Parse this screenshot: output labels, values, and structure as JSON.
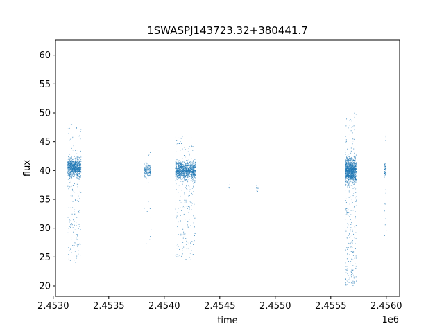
{
  "chart_data": {
    "type": "scatter",
    "title": "1SWASPJ143723.32+380441.7",
    "xlabel": "time",
    "ylabel": "flux",
    "x_offset_label": "1e6",
    "xlim": [
      2.45302,
      2.45612
    ],
    "ylim": [
      18.2,
      62.6
    ],
    "x_ticks": [
      2.453,
      2.4535,
      2.454,
      2.4545,
      2.455,
      2.4555,
      2.456
    ],
    "x_tick_labels": [
      "2.4530",
      "2.4535",
      "2.4540",
      "2.4545",
      "2.4550",
      "2.4555",
      "2.4560"
    ],
    "y_ticks": [
      20,
      25,
      30,
      35,
      40,
      45,
      50,
      55,
      60
    ],
    "y_tick_labels": [
      "20",
      "25",
      "30",
      "35",
      "40",
      "45",
      "50",
      "55",
      "60"
    ],
    "grid": false,
    "marker_color": "#1f77b4",
    "clusters": [
      {
        "x_start": 2.45313,
        "x_end": 2.45325,
        "y_median": 40.5,
        "y_min": 24.0,
        "y_max": 48.0,
        "points": 900
      },
      {
        "x_start": 2.45382,
        "x_end": 2.45388,
        "y_median": 40.0,
        "y_min": 26.5,
        "y_max": 44.0,
        "points": 150
      },
      {
        "x_start": 2.4541,
        "x_end": 2.45428,
        "y_median": 40.0,
        "y_min": 24.5,
        "y_max": 46.0,
        "points": 1100
      },
      {
        "x_start": 2.45458,
        "x_end": 2.45459,
        "y_median": 37.0,
        "y_min": 36.5,
        "y_max": 37.5,
        "points": 10
      },
      {
        "x_start": 2.45483,
        "x_end": 2.45485,
        "y_median": 37.0,
        "y_min": 36.3,
        "y_max": 37.8,
        "points": 20
      },
      {
        "x_start": 2.45563,
        "x_end": 2.45573,
        "y_median": 40.0,
        "y_min": 20.0,
        "y_max": 50.0,
        "points": 1200
      },
      {
        "x_start": 2.45598,
        "x_end": 2.456,
        "y_median": 40.0,
        "y_min": 28.0,
        "y_max": 46.0,
        "points": 60
      }
    ]
  }
}
